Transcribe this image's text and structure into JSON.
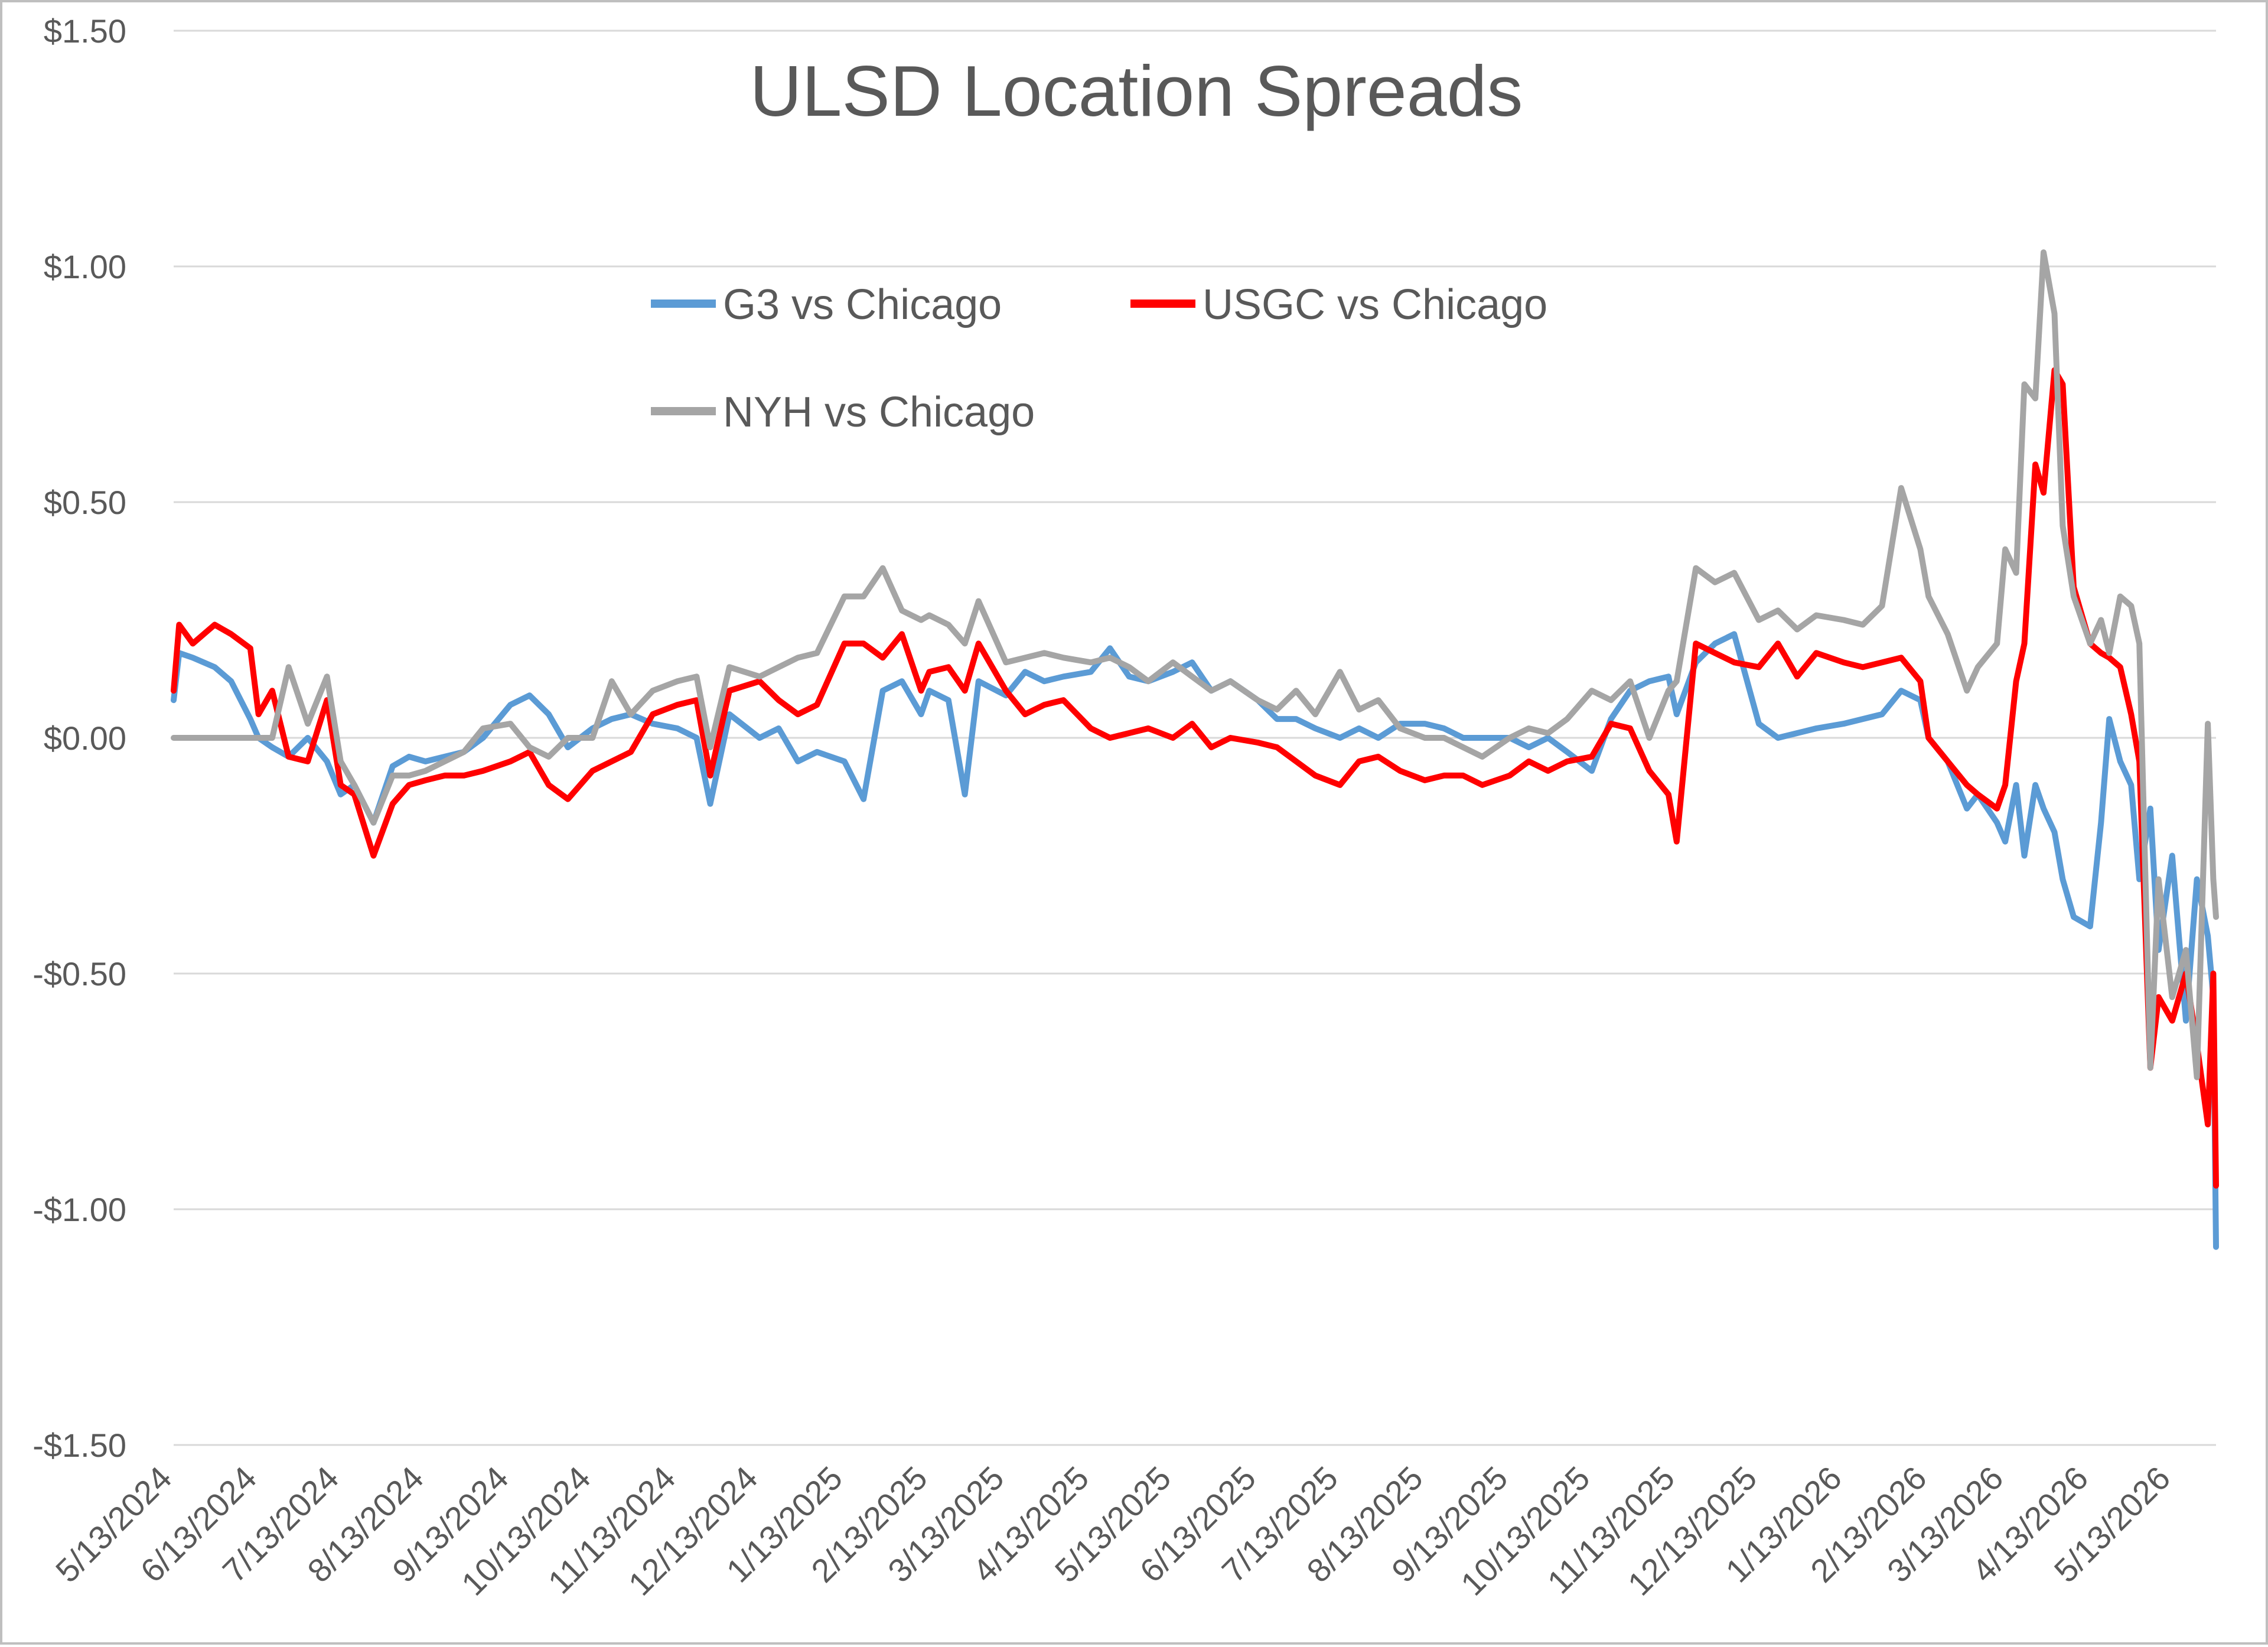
{
  "chart_data": {
    "type": "line",
    "title": "ULSD Location Spreads",
    "xlabel": "",
    "ylabel": "",
    "ylim": [
      -1.5,
      1.5
    ],
    "y_ticks": [
      1.5,
      1.0,
      0.5,
      0.0,
      -0.5,
      -1.0,
      -1.5
    ],
    "y_tick_labels": [
      "$1.50",
      "$1.00",
      "$0.50",
      "$0.00",
      "-$0.50",
      "-$1.00",
      "-$1.50"
    ],
    "grid": true,
    "legend_position": "top-center",
    "x_tick_labels": [
      "5/13/2024",
      "6/13/2024",
      "7/13/2024",
      "8/13/2024",
      "9/13/2024",
      "10/13/2024",
      "11/13/2024",
      "12/13/2024",
      "1/13/2025",
      "2/13/2025",
      "3/13/2025",
      "4/13/2025",
      "5/13/2025",
      "6/13/2025",
      "7/13/2025",
      "8/13/2025",
      "9/13/2025",
      "10/13/2025",
      "11/13/2025",
      "12/13/2025",
      "1/13/2026",
      "2/13/2026",
      "3/13/2026",
      "4/13/2026",
      "5/13/2026"
    ],
    "x_range": [
      "5/13/2024",
      "5/29/2026"
    ],
    "series": [
      {
        "name": "G3 vs Chicago",
        "color": "#5b9bd5",
        "x": [
          "5/13/2024",
          "5/15/2024",
          "5/20/2024",
          "5/28/2024",
          "6/3/2024",
          "6/10/2024",
          "6/13/2024",
          "6/18/2024",
          "6/24/2024",
          "7/1/2024",
          "7/8/2024",
          "7/13/2024",
          "7/18/2024",
          "7/25/2024",
          "8/1/2024",
          "8/7/2024",
          "8/13/2024",
          "8/20/2024",
          "8/27/2024",
          "9/3/2024",
          "9/13/2024",
          "9/20/2024",
          "9/27/2024",
          "10/4/2024",
          "10/13/2024",
          "10/20/2024",
          "10/27/2024",
          "11/4/2024",
          "11/13/2024",
          "11/20/2024",
          "11/25/2024",
          "12/2/2024",
          "12/13/2024",
          "12/20/2024",
          "12/27/2024",
          "1/3/2025",
          "1/13/2025",
          "1/20/2025",
          "1/27/2025",
          "2/3/2025",
          "2/10/2025",
          "2/13/2025",
          "2/20/2025",
          "2/26/2025",
          "3/3/2025",
          "3/13/2025",
          "3/20/2025",
          "3/27/2025",
          "4/3/2025",
          "4/13/2025",
          "4/20/2025",
          "4/27/2025",
          "5/4/2025",
          "5/13/2025",
          "5/20/2025",
          "5/27/2025",
          "6/3/2025",
          "6/13/2025",
          "6/20/2025",
          "6/27/2025",
          "7/4/2025",
          "7/13/2025",
          "7/20/2025",
          "7/27/2025",
          "8/4/2025",
          "8/13/2025",
          "8/20/2025",
          "8/27/2025",
          "9/3/2025",
          "9/13/2025",
          "9/20/2025",
          "9/27/2025",
          "10/4/2025",
          "10/13/2025",
          "10/20/2025",
          "10/27/2025",
          "11/3/2025",
          "11/10/2025",
          "11/13/2025",
          "11/20/2025",
          "11/27/2025",
          "12/4/2025",
          "12/13/2025",
          "12/20/2025",
          "12/27/2025",
          "1/3/2026",
          "1/13/2026",
          "1/20/2026",
          "1/27/2026",
          "2/3/2026",
          "2/10/2026",
          "2/13/2026",
          "2/20/2026",
          "2/27/2026",
          "3/3/2026",
          "3/10/2026",
          "3/13/2026",
          "3/17/2026",
          "3/20/2026",
          "3/24/2026",
          "3/27/2026",
          "3/31/2026",
          "4/3/2026",
          "4/7/2026",
          "4/13/2026",
          "4/17/2026",
          "4/20/2026",
          "4/24/2026",
          "4/28/2026",
          "5/1/2026",
          "5/5/2026",
          "5/8/2026",
          "5/13/2026",
          "5/18/2026",
          "5/22/2026",
          "5/26/2026",
          "5/28/2026",
          "5/29/2026"
        ],
        "values": [
          0.08,
          0.18,
          0.17,
          0.15,
          0.12,
          0.04,
          0.0,
          -0.02,
          -0.04,
          0.0,
          -0.05,
          -0.12,
          -0.1,
          -0.18,
          -0.06,
          -0.04,
          -0.05,
          -0.04,
          -0.03,
          0.0,
          0.07,
          0.09,
          0.05,
          -0.02,
          0.02,
          0.04,
          0.05,
          0.03,
          0.02,
          0.0,
          -0.14,
          0.05,
          0.0,
          0.02,
          -0.05,
          -0.03,
          -0.05,
          -0.13,
          0.1,
          0.12,
          0.05,
          0.1,
          0.08,
          -0.12,
          0.12,
          0.09,
          0.14,
          0.12,
          0.13,
          0.14,
          0.19,
          0.13,
          0.12,
          0.14,
          0.16,
          0.1,
          0.12,
          0.08,
          0.04,
          0.04,
          0.02,
          0.0,
          0.02,
          0.0,
          0.03,
          0.03,
          0.02,
          0.0,
          0.0,
          0.0,
          -0.02,
          0.0,
          -0.03,
          -0.07,
          0.04,
          0.1,
          0.12,
          0.13,
          0.05,
          0.16,
          0.2,
          0.22,
          0.03,
          0.0,
          0.01,
          0.02,
          0.03,
          0.04,
          0.05,
          0.1,
          0.08,
          0.0,
          -0.05,
          -0.15,
          -0.12,
          -0.18,
          -0.22,
          -0.1,
          -0.25,
          -0.1,
          -0.15,
          -0.2,
          -0.3,
          -0.38,
          -0.4,
          -0.18,
          0.04,
          -0.05,
          -0.1,
          -0.3,
          -0.15,
          -0.45,
          -0.25,
          -0.6,
          -0.3,
          -0.42,
          -0.55,
          -1.08
        ]
      },
      {
        "name": "USGC vs Chicago",
        "color": "#ff0000",
        "x": [
          "5/13/2024",
          "5/15/2024",
          "5/20/2024",
          "5/28/2024",
          "6/3/2024",
          "6/10/2024",
          "6/13/2024",
          "6/18/2024",
          "6/24/2024",
          "7/1/2024",
          "7/8/2024",
          "7/13/2024",
          "7/18/2024",
          "7/25/2024",
          "8/1/2024",
          "8/7/2024",
          "8/13/2024",
          "8/20/2024",
          "8/27/2024",
          "9/3/2024",
          "9/13/2024",
          "9/20/2024",
          "9/27/2024",
          "10/4/2024",
          "10/13/2024",
          "10/20/2024",
          "10/27/2024",
          "11/4/2024",
          "11/13/2024",
          "11/20/2024",
          "11/25/2024",
          "12/2/2024",
          "12/13/2024",
          "12/20/2024",
          "12/27/2024",
          "1/3/2025",
          "1/13/2025",
          "1/20/2025",
          "1/27/2025",
          "2/3/2025",
          "2/10/2025",
          "2/13/2025",
          "2/20/2025",
          "2/26/2025",
          "3/3/2025",
          "3/13/2025",
          "3/20/2025",
          "3/27/2025",
          "4/3/2025",
          "4/13/2025",
          "4/20/2025",
          "4/27/2025",
          "5/4/2025",
          "5/13/2025",
          "5/20/2025",
          "5/27/2025",
          "6/3/2025",
          "6/13/2025",
          "6/20/2025",
          "6/27/2025",
          "7/4/2025",
          "7/13/2025",
          "7/20/2025",
          "7/27/2025",
          "8/4/2025",
          "8/13/2025",
          "8/20/2025",
          "8/27/2025",
          "9/3/2025",
          "9/13/2025",
          "9/20/2025",
          "9/27/2025",
          "10/4/2025",
          "10/13/2025",
          "10/20/2025",
          "10/27/2025",
          "11/3/2025",
          "11/10/2025",
          "11/13/2025",
          "11/20/2025",
          "11/27/2025",
          "12/4/2025",
          "12/13/2025",
          "12/20/2025",
          "12/27/2025",
          "1/3/2026",
          "1/13/2026",
          "1/20/2026",
          "1/27/2026",
          "2/3/2026",
          "2/10/2026",
          "2/13/2026",
          "2/20/2026",
          "2/27/2026",
          "3/3/2026",
          "3/10/2026",
          "3/13/2026",
          "3/17/2026",
          "3/20/2026",
          "3/24/2026",
          "3/27/2026",
          "3/31/2026",
          "4/3/2026",
          "4/7/2026",
          "4/13/2026",
          "4/17/2026",
          "4/20/2026",
          "4/24/2026",
          "4/28/2026",
          "5/1/2026",
          "5/5/2026",
          "5/8/2026",
          "5/13/2026",
          "5/18/2026",
          "5/22/2026",
          "5/26/2026",
          "5/28/2026",
          "5/29/2026"
        ],
        "values": [
          0.1,
          0.24,
          0.2,
          0.24,
          0.22,
          0.19,
          0.05,
          0.1,
          -0.04,
          -0.05,
          0.08,
          -0.1,
          -0.12,
          -0.25,
          -0.14,
          -0.1,
          -0.09,
          -0.08,
          -0.08,
          -0.07,
          -0.05,
          -0.03,
          -0.1,
          -0.13,
          -0.07,
          -0.05,
          -0.03,
          0.05,
          0.07,
          0.08,
          -0.08,
          0.1,
          0.12,
          0.08,
          0.05,
          0.07,
          0.2,
          0.2,
          0.17,
          0.22,
          0.1,
          0.14,
          0.15,
          0.1,
          0.2,
          0.1,
          0.05,
          0.07,
          0.08,
          0.02,
          0.0,
          0.01,
          0.02,
          0.0,
          0.03,
          -0.02,
          0.0,
          -0.01,
          -0.02,
          -0.05,
          -0.08,
          -0.1,
          -0.05,
          -0.04,
          -0.07,
          -0.09,
          -0.08,
          -0.08,
          -0.1,
          -0.08,
          -0.05,
          -0.07,
          -0.05,
          -0.04,
          0.03,
          0.02,
          -0.07,
          -0.12,
          -0.22,
          0.2,
          0.18,
          0.16,
          0.15,
          0.2,
          0.13,
          0.18,
          0.16,
          0.15,
          0.16,
          0.17,
          0.12,
          0.0,
          -0.05,
          -0.1,
          -0.12,
          -0.15,
          -0.1,
          0.12,
          0.2,
          0.58,
          0.52,
          0.78,
          0.75,
          0.32,
          0.2,
          0.18,
          0.17,
          0.15,
          0.05,
          -0.05,
          -0.7,
          -0.55,
          -0.6,
          -0.5,
          -0.65,
          -0.82,
          -0.5,
          -0.95
        ]
      },
      {
        "name": "NYH vs Chicago",
        "color": "#a5a5a5",
        "x": [
          "5/13/2024",
          "5/15/2024",
          "5/20/2024",
          "5/28/2024",
          "6/3/2024",
          "6/10/2024",
          "6/13/2024",
          "6/18/2024",
          "6/24/2024",
          "7/1/2024",
          "7/8/2024",
          "7/13/2024",
          "7/18/2024",
          "7/25/2024",
          "8/1/2024",
          "8/7/2024",
          "8/13/2024",
          "8/20/2024",
          "8/27/2024",
          "9/3/2024",
          "9/13/2024",
          "9/20/2024",
          "9/27/2024",
          "10/4/2024",
          "10/13/2024",
          "10/20/2024",
          "10/27/2024",
          "11/4/2024",
          "11/13/2024",
          "11/20/2024",
          "11/25/2024",
          "12/2/2024",
          "12/13/2024",
          "12/20/2024",
          "12/27/2024",
          "1/3/2025",
          "1/13/2025",
          "1/20/2025",
          "1/27/2025",
          "2/3/2025",
          "2/10/2025",
          "2/13/2025",
          "2/20/2025",
          "2/26/2025",
          "3/3/2025",
          "3/13/2025",
          "3/20/2025",
          "3/27/2025",
          "4/3/2025",
          "4/13/2025",
          "4/20/2025",
          "4/27/2025",
          "5/4/2025",
          "5/13/2025",
          "5/20/2025",
          "5/27/2025",
          "6/3/2025",
          "6/13/2025",
          "6/20/2025",
          "6/27/2025",
          "7/4/2025",
          "7/13/2025",
          "7/20/2025",
          "7/27/2025",
          "8/4/2025",
          "8/13/2025",
          "8/20/2025",
          "8/27/2025",
          "9/3/2025",
          "9/13/2025",
          "9/20/2025",
          "9/27/2025",
          "10/4/2025",
          "10/13/2025",
          "10/20/2025",
          "10/27/2025",
          "11/3/2025",
          "11/10/2025",
          "11/13/2025",
          "11/20/2025",
          "11/27/2025",
          "12/4/2025",
          "12/13/2025",
          "12/20/2025",
          "12/27/2025",
          "1/3/2026",
          "1/13/2026",
          "1/20/2026",
          "1/27/2026",
          "2/3/2026",
          "2/10/2026",
          "2/13/2026",
          "2/20/2026",
          "2/27/2026",
          "3/3/2026",
          "3/10/2026",
          "3/13/2026",
          "3/17/2026",
          "3/20/2026",
          "3/24/2026",
          "3/27/2026",
          "3/31/2026",
          "4/3/2026",
          "4/7/2026",
          "4/13/2026",
          "4/17/2026",
          "4/20/2026",
          "4/24/2026",
          "4/28/2026",
          "5/1/2026",
          "5/5/2026",
          "5/8/2026",
          "5/13/2026",
          "5/18/2026",
          "5/22/2026",
          "5/26/2026",
          "5/28/2026",
          "5/29/2026"
        ],
        "values": [
          0.0,
          0.0,
          0.0,
          0.0,
          0.0,
          0.0,
          0.0,
          0.0,
          0.15,
          0.03,
          0.13,
          -0.05,
          -0.1,
          -0.18,
          -0.08,
          -0.08,
          -0.07,
          -0.05,
          -0.03,
          0.02,
          0.03,
          -0.02,
          -0.04,
          0.0,
          0.0,
          0.12,
          0.05,
          0.1,
          0.12,
          0.13,
          -0.02,
          0.15,
          0.13,
          0.15,
          0.17,
          0.18,
          0.3,
          0.3,
          0.36,
          0.27,
          0.25,
          0.26,
          0.24,
          0.2,
          0.29,
          0.16,
          0.17,
          0.18,
          0.17,
          0.16,
          0.17,
          0.15,
          0.12,
          0.16,
          0.13,
          0.1,
          0.12,
          0.08,
          0.06,
          0.1,
          0.05,
          0.14,
          0.06,
          0.08,
          0.02,
          0.0,
          0.0,
          -0.02,
          -0.04,
          0.0,
          0.02,
          0.01,
          0.04,
          0.1,
          0.08,
          0.12,
          0.0,
          0.1,
          0.12,
          0.36,
          0.33,
          0.35,
          0.25,
          0.27,
          0.23,
          0.26,
          0.25,
          0.24,
          0.28,
          0.53,
          0.4,
          0.3,
          0.22,
          0.1,
          0.15,
          0.2,
          0.4,
          0.35,
          0.75,
          0.72,
          1.03,
          0.9,
          0.45,
          0.3,
          0.2,
          0.25,
          0.18,
          0.3,
          0.28,
          0.2,
          -0.7,
          -0.3,
          -0.55,
          -0.45,
          -0.72,
          0.03,
          -0.3,
          -0.38
        ]
      }
    ]
  }
}
